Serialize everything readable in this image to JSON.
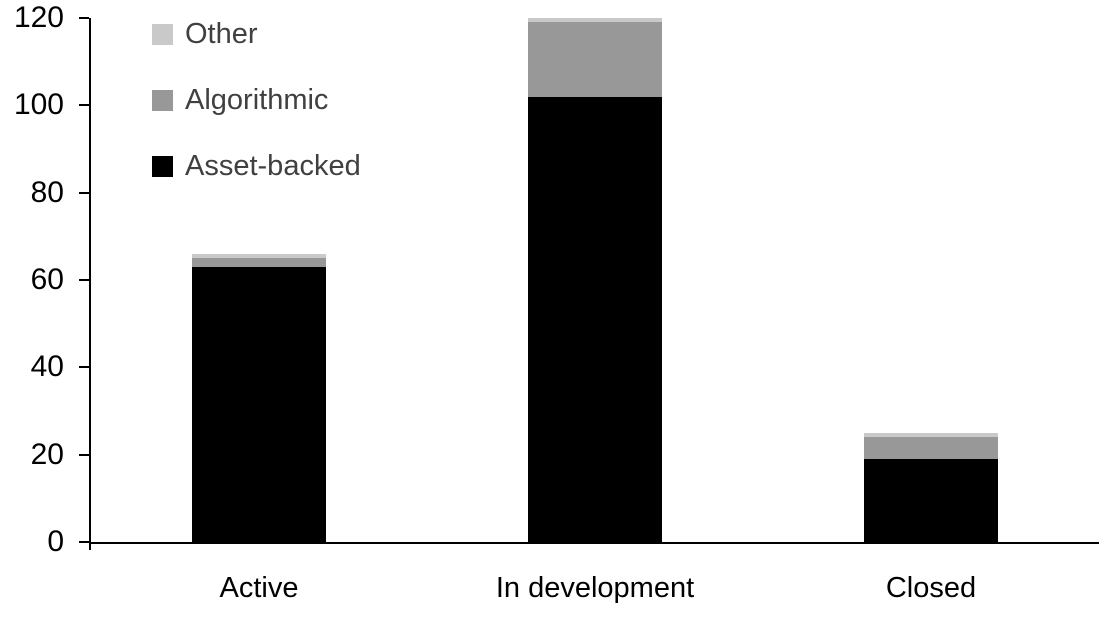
{
  "chart_data": {
    "type": "bar",
    "variant": "stacked-column",
    "title": "",
    "xlabel": "",
    "ylabel": "",
    "categories": [
      "Active",
      "In development",
      "Closed"
    ],
    "series": [
      {
        "name": "Asset-backed",
        "color": "#000000",
        "values": [
          63,
          102,
          19
        ]
      },
      {
        "name": "Algorithmic",
        "color": "#989898",
        "values": [
          2,
          17,
          5
        ]
      },
      {
        "name": "Other",
        "color": "#c9c9c9",
        "values": [
          1,
          1,
          1
        ]
      }
    ],
    "stack_order_bottom_to_top": [
      "Asset-backed",
      "Algorithmic",
      "Other"
    ],
    "ylim": [
      0,
      120
    ],
    "yticks": [
      0,
      20,
      40,
      60,
      80,
      100,
      120
    ],
    "grid": false,
    "legend": {
      "position": "top-left",
      "order_top_to_bottom": [
        "Other",
        "Algorithmic",
        "Asset-backed"
      ]
    },
    "colors": {
      "background": "#ffffff",
      "axis": "#000000",
      "axis_text": "#000000",
      "legend_text": "#404040"
    }
  }
}
